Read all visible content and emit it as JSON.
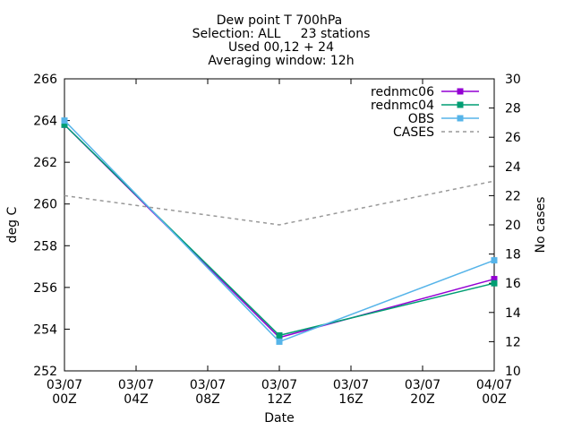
{
  "chart_data": {
    "type": "line",
    "title": [
      "Dew point T 700hPa",
      "Selection: ALL     23 stations",
      "Used 00,12 + 24",
      "Averaging window: 12h"
    ],
    "xlabel": "Date",
    "ylabel": "deg C",
    "y2label": "No cases",
    "x_ticks": [
      {
        "hours": 0,
        "line1": "03/07",
        "line2": "00Z"
      },
      {
        "hours": 4,
        "line1": "03/07",
        "line2": "04Z"
      },
      {
        "hours": 8,
        "line1": "03/07",
        "line2": "08Z"
      },
      {
        "hours": 12,
        "line1": "03/07",
        "line2": "12Z"
      },
      {
        "hours": 16,
        "line1": "03/07",
        "line2": "16Z"
      },
      {
        "hours": 20,
        "line1": "03/07",
        "line2": "20Z"
      },
      {
        "hours": 24,
        "line1": "04/07",
        "line2": "00Z"
      }
    ],
    "xlim": [
      0,
      24
    ],
    "ylim": [
      252,
      266
    ],
    "y_ticks": [
      "252",
      "254",
      "256",
      "258",
      "260",
      "262",
      "264",
      "266"
    ],
    "y2lim": [
      10,
      30
    ],
    "y2_ticks": [
      "10",
      "12",
      "14",
      "16",
      "18",
      "20",
      "22",
      "24",
      "26",
      "28",
      "30"
    ],
    "x_hours": [
      0,
      12,
      24
    ],
    "series": [
      {
        "name": "rednmc06",
        "axis": "y",
        "color": "#9400d3",
        "marker": "square",
        "dash": false,
        "values": [
          263.8,
          253.6,
          256.4
        ]
      },
      {
        "name": "rednmc04",
        "axis": "y",
        "color": "#009e73",
        "marker": "square",
        "dash": false,
        "values": [
          263.8,
          253.7,
          256.2
        ]
      },
      {
        "name": "OBS",
        "axis": "y",
        "color": "#56b4e9",
        "marker": "square",
        "dash": false,
        "values": [
          264.0,
          253.4,
          257.3
        ]
      },
      {
        "name": "CASES",
        "axis": "y2",
        "color": "#999999",
        "marker": "none",
        "dash": true,
        "values": [
          22,
          20,
          23
        ]
      }
    ],
    "grid": false,
    "legend_position": "top-right"
  }
}
